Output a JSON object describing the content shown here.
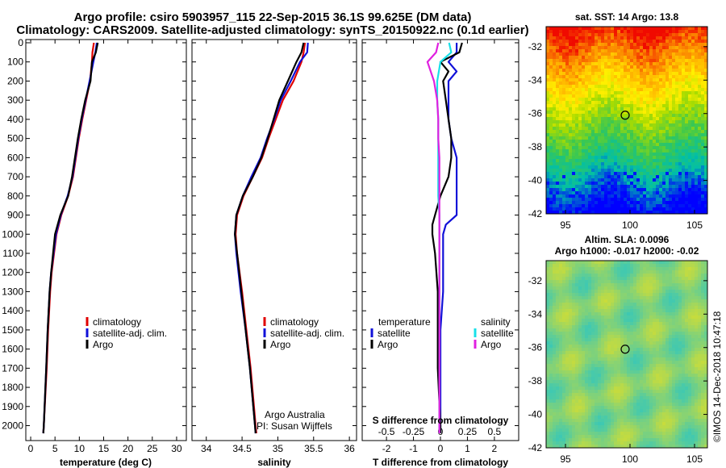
{
  "figure": {
    "title_line1": "Argo profile: csiro 5903957_115 22-Sep-2015 36.1S 99.625E (DM data)",
    "title_line2": "Climatology: CARS2009. Satellite-adjusted climatology: synTS_20150922.nc (0.1d earlier)",
    "credit_line1": "Argo Australia",
    "credit_line2": "PI: Susan Wijffels",
    "footer": "©IMOS 14-Dec-2018 10:47:18"
  },
  "colors": {
    "climatology": "#e00000",
    "satellite": "#1010d8",
    "argo": "#000000",
    "satellite_s": "#18e0e8",
    "argo_s": "#e020e0"
  },
  "chart_data": [
    {
      "id": "temperature",
      "type": "line",
      "xlabel": "temperature (deg C)",
      "ylabel": "depth",
      "xlim": [
        -1,
        32
      ],
      "ylim": [
        2070,
        0
      ],
      "xticks": [
        0,
        5,
        10,
        15,
        20,
        25,
        30
      ],
      "yticks": [
        0,
        100,
        200,
        300,
        400,
        500,
        600,
        700,
        800,
        900,
        1000,
        1100,
        1200,
        1300,
        1400,
        1500,
        1600,
        1700,
        1800,
        1900,
        2000
      ],
      "legend": [
        "climatology",
        "satellite-adj. clim.",
        "Argo"
      ],
      "series": [
        {
          "name": "climatology",
          "depth": [
            0,
            50,
            100,
            200,
            300,
            400,
            500,
            600,
            700,
            800,
            900,
            1000,
            1100,
            1200,
            1300,
            1500,
            1700,
            2000,
            2040
          ],
          "values": [
            13.0,
            12.7,
            12.6,
            12.2,
            11.4,
            10.6,
            9.9,
            9.3,
            8.7,
            7.7,
            6.3,
            5.3,
            4.8,
            4.3,
            4.0,
            3.6,
            3.3,
            2.7,
            2.6
          ]
        },
        {
          "name": "satellite-adj. clim.",
          "depth": [
            0,
            50,
            100,
            200,
            300,
            400,
            500,
            600,
            700,
            800,
            900,
            1000,
            1100,
            1200,
            1300,
            1500,
            1700,
            2000,
            2040
          ],
          "values": [
            13.6,
            13.3,
            12.9,
            12.1,
            11.3,
            10.5,
            9.8,
            9.2,
            8.6,
            7.6,
            6.2,
            5.2,
            4.7,
            4.2,
            3.9,
            3.5,
            3.2,
            2.7,
            2.6
          ]
        },
        {
          "name": "Argo",
          "depth": [
            0,
            50,
            100,
            200,
            300,
            400,
            500,
            600,
            700,
            800,
            900,
            1000,
            1100,
            1200,
            1300,
            1500,
            1700,
            2000,
            2040
          ],
          "values": [
            13.8,
            13.4,
            12.6,
            12.3,
            11.2,
            10.4,
            9.7,
            9.1,
            8.5,
            7.7,
            6.1,
            5.0,
            4.6,
            4.2,
            3.9,
            3.5,
            3.2,
            2.7,
            2.6
          ]
        }
      ]
    },
    {
      "id": "salinity",
      "type": "line",
      "xlabel": "salinity",
      "ylabel": "depth",
      "xlim": [
        33.8,
        36.1
      ],
      "ylim": [
        2070,
        0
      ],
      "xticks": [
        34,
        34.5,
        35,
        35.5,
        36
      ],
      "xtick_labels": [
        "34",
        "34.5",
        "35",
        "35.5",
        "36"
      ],
      "legend": [
        "climatology",
        "satellite-adj. clim.",
        "Argo"
      ],
      "series": [
        {
          "name": "climatology",
          "depth": [
            0,
            50,
            100,
            200,
            300,
            400,
            500,
            600,
            700,
            800,
            900,
            1000,
            1100,
            1300,
            1500,
            1700,
            2000,
            2040
          ],
          "values": [
            35.38,
            35.36,
            35.33,
            35.22,
            35.07,
            34.97,
            34.87,
            34.78,
            34.65,
            34.52,
            34.43,
            34.41,
            34.43,
            34.5,
            34.56,
            34.62,
            34.69,
            34.7
          ]
        },
        {
          "name": "satellite-adj. clim.",
          "depth": [
            0,
            50,
            100,
            200,
            300,
            400,
            500,
            600,
            700,
            800,
            900,
            1000,
            1100,
            1300,
            1500,
            1700,
            2000,
            2040
          ],
          "values": [
            35.42,
            35.41,
            35.31,
            35.18,
            35.04,
            34.95,
            34.85,
            34.76,
            34.63,
            34.51,
            34.42,
            34.4,
            34.42,
            34.48,
            34.55,
            34.61,
            34.68,
            34.69
          ]
        },
        {
          "name": "Argo",
          "depth": [
            0,
            50,
            100,
            200,
            300,
            400,
            500,
            600,
            700,
            800,
            900,
            1000,
            1100,
            1300,
            1500,
            1700,
            2000,
            2040
          ],
          "values": [
            35.36,
            35.33,
            35.26,
            35.14,
            35.02,
            34.94,
            34.86,
            34.77,
            34.65,
            34.51,
            34.42,
            34.4,
            34.43,
            34.49,
            34.55,
            34.61,
            34.68,
            34.69
          ]
        }
      ]
    },
    {
      "id": "difference",
      "type": "line",
      "xlabel": "T difference from climatology",
      "xlabel_top": "S difference from climatology",
      "xlim": [
        -2.9,
        2.9
      ],
      "ylim": [
        2070,
        0
      ],
      "xticks": [
        -2,
        -1,
        0,
        1,
        2
      ],
      "xticks_s": [
        -0.5,
        -0.25,
        0,
        0.25,
        0.5
      ],
      "xtick_labels_s": [
        "-0.5",
        "-0.25",
        "0",
        "0.25",
        "0.5"
      ],
      "legend_left_title": "temperature",
      "legend_right_title": "salinity",
      "legend_left": [
        "satellite",
        "Argo"
      ],
      "legend_right": [
        "satellite",
        "Argo"
      ],
      "series": [
        {
          "name": "T satellite",
          "depth": [
            0,
            50,
            100,
            150,
            200,
            300,
            400,
            500,
            600,
            700,
            800,
            900,
            950,
            1000,
            1100,
            1300,
            1500,
            1700,
            2000,
            2040
          ],
          "values": [
            0.6,
            0.6,
            0.3,
            0.6,
            0.3,
            0.3,
            0.3,
            0.4,
            0.6,
            0.6,
            0.6,
            0.6,
            0.2,
            0.1,
            0.1,
            0.1,
            0.0,
            0.0,
            0.0,
            0.0
          ]
        },
        {
          "name": "T Argo",
          "depth": [
            0,
            50,
            100,
            150,
            200,
            300,
            400,
            500,
            600,
            700,
            800,
            900,
            950,
            1000,
            1100,
            1300,
            1500,
            1700,
            2000,
            2040
          ],
          "values": [
            0.8,
            0.7,
            0.0,
            0.3,
            0.1,
            0.2,
            0.3,
            0.4,
            0.4,
            0.3,
            0.0,
            -0.2,
            -0.3,
            -0.3,
            -0.2,
            -0.1,
            -0.1,
            -0.1,
            0.0,
            0.0
          ]
        },
        {
          "name": "S satellite",
          "depth": [
            0,
            50,
            100,
            200,
            300,
            400,
            500,
            600,
            700,
            800,
            900,
            1000,
            1200,
            1500,
            1800,
            2040
          ],
          "values": [
            0.08,
            0.1,
            0.0,
            -0.03,
            -0.03,
            -0.02,
            -0.02,
            -0.02,
            -0.02,
            -0.02,
            -0.01,
            -0.01,
            -0.01,
            -0.01,
            -0.01,
            -0.01
          ]
        },
        {
          "name": "S Argo",
          "depth": [
            0,
            50,
            100,
            200,
            300,
            400,
            500,
            600,
            700,
            800,
            900,
            1000,
            1200,
            1500,
            1800,
            2040
          ],
          "values": [
            -0.02,
            -0.04,
            -0.12,
            -0.06,
            -0.03,
            -0.02,
            -0.02,
            -0.01,
            -0.01,
            -0.01,
            -0.01,
            -0.01,
            -0.01,
            -0.01,
            -0.01,
            -0.01
          ]
        }
      ]
    },
    {
      "id": "sst_map",
      "type": "heatmap",
      "title": "sat. SST: 14 Argo: 13.8",
      "xlim": [
        93.5,
        106
      ],
      "ylim": [
        -42,
        -30.8
      ],
      "xticks": [
        95,
        100,
        105
      ],
      "yticks": [
        -32,
        -34,
        -36,
        -38,
        -40,
        -42
      ],
      "marker": {
        "lon": 99.625,
        "lat": -36.1
      }
    },
    {
      "id": "sla_map",
      "type": "heatmap",
      "title_line1": "Altim. SLA: 0.0096",
      "title_line2": "Argo h1000: -0.017 h2000: -0.02",
      "xlim": [
        93.5,
        106
      ],
      "ylim": [
        -42,
        -30.8
      ],
      "xticks": [
        95,
        100,
        105
      ],
      "yticks": [
        -32,
        -34,
        -36,
        -38,
        -40,
        -42
      ],
      "marker": {
        "lon": 99.625,
        "lat": -36.1
      }
    }
  ]
}
